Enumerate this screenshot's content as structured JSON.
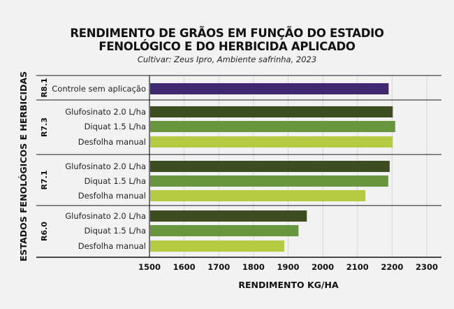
{
  "chart_data": {
    "type": "bar",
    "orientation": "horizontal",
    "title": "RENDIMENTO DE GRÃOS EM FUNÇÃO DO ESTADIO FENOLÓGICO E DO HERBICIDA APLICADO",
    "title_lines": [
      "RENDIMENTO DE GRÃOS EM FUNÇÃO DO ESTADIO",
      "FENOLÓGICO E DO HERBICIDA APLICADO"
    ],
    "subtitle": "Cultivar: Zeus Ipro, Ambiente safrinha, 2023",
    "xlabel": "RENDIMENTO KG/HA",
    "ylabel": "ESTADOS FENOLÓGICOS E HERBICIDAS",
    "xlim": [
      1500,
      2300
    ],
    "xticks": [
      "1500",
      "1600",
      "1700",
      "1800",
      "1900",
      "2000",
      "2100",
      "2200",
      "2300"
    ],
    "grid": true,
    "groups": [
      {
        "name": "R8.1",
        "bars": [
          {
            "label": "Controle sem aplicação",
            "value": 2190,
            "color": "#3f2870"
          }
        ]
      },
      {
        "name": "R7.3",
        "bars": [
          {
            "label": "Glufosinato 2.0 L/ha",
            "value": 2202,
            "color": "#3d4d22"
          },
          {
            "label": "Diquat 1.5 L/ha",
            "value": 2209,
            "color": "#67963f"
          },
          {
            "label": "Desfolha  manual",
            "value": 2202,
            "color": "#b6c943"
          }
        ]
      },
      {
        "name": "R7.1",
        "bars": [
          {
            "label": "Glufosinato 2.0 L/ha",
            "value": 2193,
            "color": "#3d4d22"
          },
          {
            "label": "Diquat 1.5 L/ha",
            "value": 2189,
            "color": "#67963f"
          },
          {
            "label": "Desfolha  manual",
            "value": 2123,
            "color": "#b6c943"
          }
        ]
      },
      {
        "name": "R6.0",
        "bars": [
          {
            "label": "Glufosinato 2.0 L/ha",
            "value": 1954,
            "color": "#3d4d22"
          },
          {
            "label": "Diquat 1.5 L/ha",
            "value": 1930,
            "color": "#67963f"
          },
          {
            "label": "Desfolha  manual",
            "value": 1889,
            "color": "#b6c943"
          }
        ]
      }
    ]
  }
}
